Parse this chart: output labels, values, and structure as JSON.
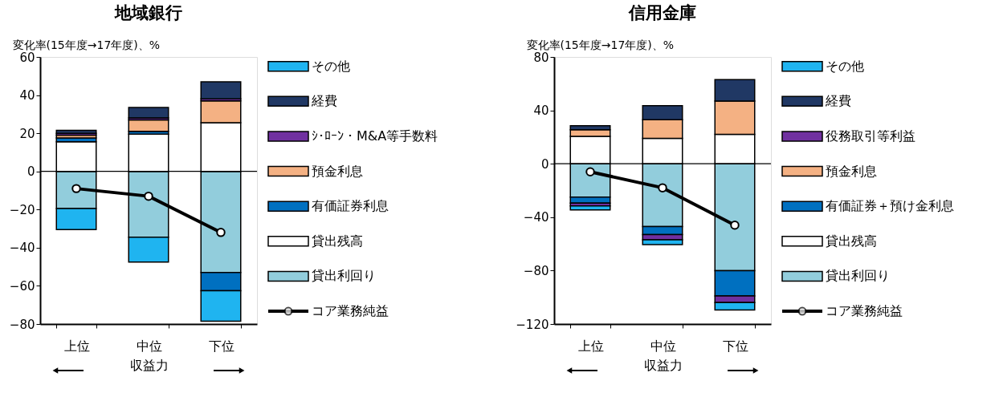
{
  "chart_data": [
    {
      "type": "bar",
      "stacked": true,
      "title": "地域銀行",
      "ylabel": "変化率(15年度→17年度)、%",
      "xlabel": "収益力",
      "categories": [
        "上位",
        "中位",
        "下位"
      ],
      "ylim": [
        -80,
        60
      ],
      "yticks": [
        -80,
        -60,
        -40,
        -20,
        0,
        20,
        40,
        60
      ],
      "grid": false,
      "legend": "right",
      "ref_lines": [
        {
          "axis": "y",
          "value": 0,
          "color": "#000000"
        }
      ],
      "series": [
        {
          "name": "貸出利回り",
          "color": "#92cddc",
          "values": [
            -19.5,
            -34.5,
            -53
          ]
        },
        {
          "name": "貸出残高",
          "color": "#ffffff",
          "values": [
            15.5,
            19.5,
            25.5
          ]
        },
        {
          "name": "有価証券利息",
          "color": "#0070c0",
          "values": [
            2,
            1.5,
            -9.5
          ]
        },
        {
          "name": "預金利息",
          "color": "#f4b183",
          "values": [
            1.5,
            6,
            11.5
          ]
        },
        {
          "name": "ｼ･ﾛｰﾝ・M&A等手数料",
          "color": "#7030a0",
          "values": [
            1,
            1,
            1
          ]
        },
        {
          "name": "経費",
          "color": "#203864",
          "values": [
            1.5,
            5.5,
            9
          ]
        },
        {
          "name": "その他",
          "color": "#1fb4f0",
          "values": [
            -11,
            -13,
            -16
          ]
        },
        {
          "name": "コア業務純益",
          "color": "#000000",
          "type": "line",
          "marker": "circle",
          "values": [
            -9,
            -13,
            -32
          ]
        }
      ]
    },
    {
      "type": "bar",
      "stacked": true,
      "title": "信用金庫",
      "ylabel": "変化率(15年度→17年度)、%",
      "xlabel": "収益力",
      "categories": [
        "上位",
        "中位",
        "下位"
      ],
      "ylim": [
        -120,
        80
      ],
      "yticks": [
        -120,
        -80,
        -40,
        0,
        40,
        80
      ],
      "grid": false,
      "legend": "right",
      "ref_lines": [
        {
          "axis": "y",
          "value": 0,
          "color": "#000000"
        }
      ],
      "series": [
        {
          "name": "貸出利回り",
          "color": "#92cddc",
          "values": [
            -25,
            -47,
            -80
          ]
        },
        {
          "name": "貸出残高",
          "color": "#ffffff",
          "values": [
            20.5,
            19,
            22
          ]
        },
        {
          "name": "有価証券＋預け金利息",
          "color": "#0070c0",
          "values": [
            -4.5,
            -6,
            -19
          ]
        },
        {
          "name": "預金利息",
          "color": "#f4b183",
          "values": [
            5,
            14,
            25
          ]
        },
        {
          "name": "役務取引等利益",
          "color": "#7030a0",
          "values": [
            -2,
            -4,
            -5
          ]
        },
        {
          "name": "経費",
          "color": "#203864",
          "values": [
            3,
            10.5,
            16
          ]
        },
        {
          "name": "その他",
          "color": "#1fb4f0",
          "values": [
            -3,
            -3.5,
            -5.5
          ]
        },
        {
          "name": "コア業務純益",
          "color": "#000000",
          "type": "line",
          "marker": "circle",
          "values": [
            -6,
            -18,
            -46
          ]
        }
      ]
    }
  ]
}
